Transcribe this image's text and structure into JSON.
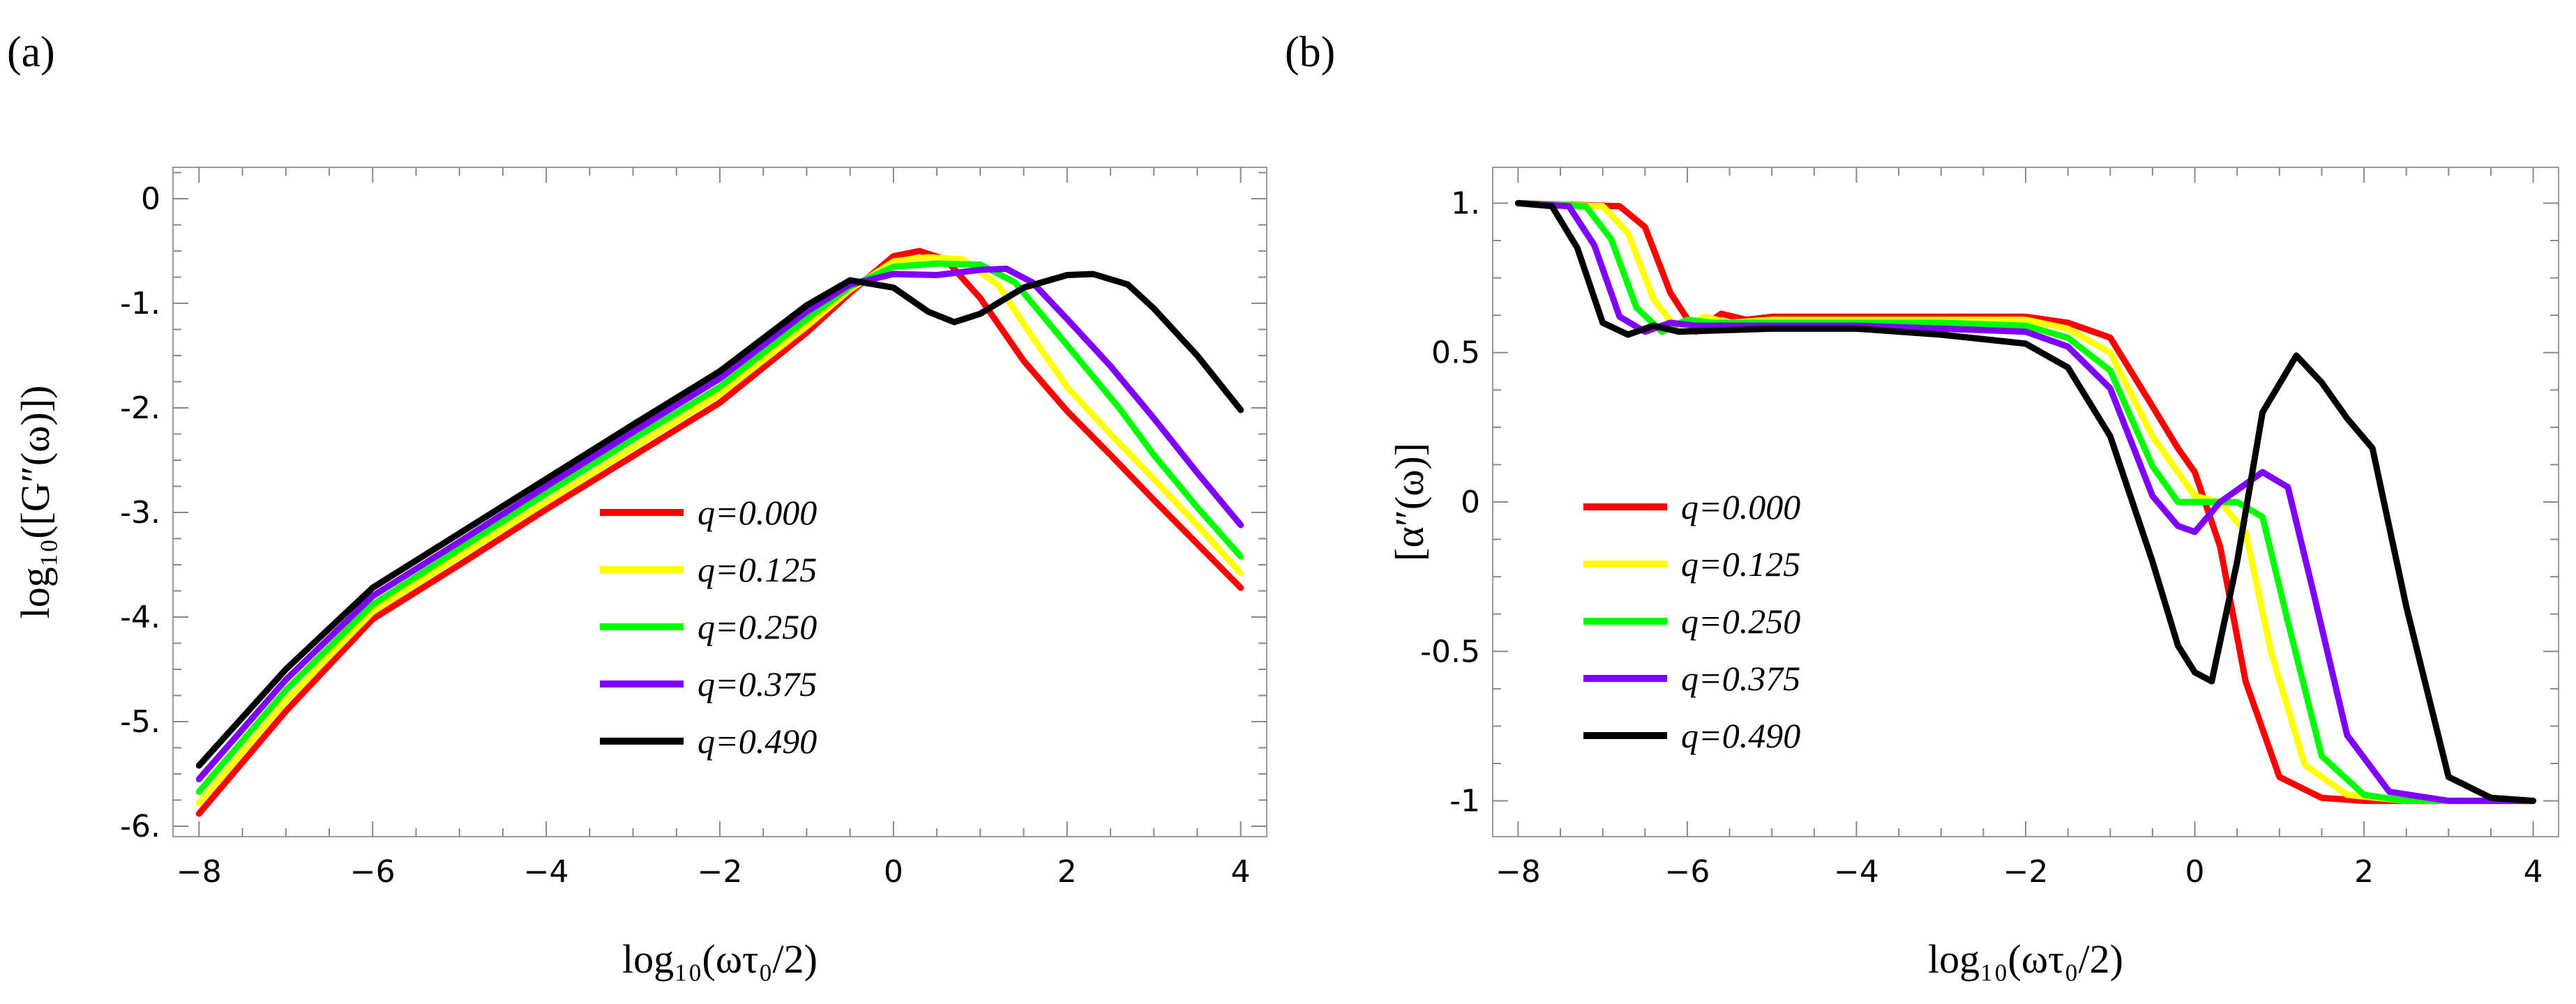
{
  "chart_data": [
    {
      "panel_label": "(a)",
      "type": "line",
      "xlabel": "log₁₀(ωτ₀/2)",
      "ylabel": "log₁₀([G″(ω)])",
      "xlim": [
        -8.3,
        4.3
      ],
      "ylim": [
        -6.1,
        0.3
      ],
      "xticks": [
        {
          "v": -8,
          "label": "−8"
        },
        {
          "v": -6,
          "label": "−6"
        },
        {
          "v": -4,
          "label": "−4"
        },
        {
          "v": -2,
          "label": "−2"
        },
        {
          "v": 0,
          "label": "0"
        },
        {
          "v": 2,
          "label": "2"
        },
        {
          "v": 4,
          "label": "4"
        }
      ],
      "yticks": [
        {
          "v": 0,
          "label": "0"
        },
        {
          "v": -1,
          "label": "-1."
        },
        {
          "v": -2,
          "label": "-2."
        },
        {
          "v": -3,
          "label": "-3."
        },
        {
          "v": -4,
          "label": "-4."
        },
        {
          "v": -5,
          "label": "-5."
        },
        {
          "v": -6,
          "label": "-6."
        }
      ],
      "legend_position": "center",
      "series": [
        {
          "name": "q=0.000",
          "color": "#ff0000",
          "x": [
            -8,
            -7,
            -6,
            -5,
            -4,
            -3,
            -2,
            -1,
            -0.5,
            0,
            0.3,
            0.6,
            1,
            1.5,
            2,
            2.5,
            3,
            3.5,
            4
          ],
          "y": [
            -5.88,
            -4.9,
            -4.02,
            -3.5,
            -2.97,
            -2.46,
            -1.95,
            -1.28,
            -0.9,
            -0.55,
            -0.5,
            -0.58,
            -0.95,
            -1.55,
            -2.03,
            -2.45,
            -2.88,
            -3.3,
            -3.72
          ]
        },
        {
          "name": "q=0.125",
          "color": "#ffff00",
          "x": [
            -8,
            -7,
            -6,
            -5,
            -4,
            -3,
            -2,
            -1,
            -0.5,
            0,
            0.4,
            0.8,
            1.2,
            1.6,
            2,
            2.5,
            3,
            3.5,
            4
          ],
          "y": [
            -5.78,
            -4.8,
            -3.95,
            -3.42,
            -2.9,
            -2.38,
            -1.87,
            -1.22,
            -0.87,
            -0.6,
            -0.56,
            -0.58,
            -0.82,
            -1.32,
            -1.8,
            -2.25,
            -2.68,
            -3.12,
            -3.58
          ]
        },
        {
          "name": "q=0.250",
          "color": "#00ff00",
          "x": [
            -8,
            -7,
            -6,
            -5,
            -4,
            -3,
            -2,
            -1,
            -0.5,
            0,
            0.5,
            1,
            1.4,
            1.8,
            2.2,
            2.6,
            3,
            3.5,
            4
          ],
          "y": [
            -5.67,
            -4.7,
            -3.88,
            -3.35,
            -2.82,
            -2.3,
            -1.8,
            -1.15,
            -0.84,
            -0.65,
            -0.62,
            -0.63,
            -0.8,
            -1.2,
            -1.6,
            -2.0,
            -2.45,
            -2.95,
            -3.42
          ]
        },
        {
          "name": "q=0.375",
          "color": "#8000ff",
          "x": [
            -8,
            -7,
            -6,
            -5,
            -4,
            -3,
            -2,
            -1,
            -0.5,
            0,
            0.5,
            1,
            1.3,
            1.6,
            2,
            2.5,
            3,
            3.5,
            4
          ],
          "y": [
            -5.55,
            -4.6,
            -3.8,
            -3.28,
            -2.75,
            -2.23,
            -1.72,
            -1.08,
            -0.82,
            -0.72,
            -0.73,
            -0.68,
            -0.67,
            -0.8,
            -1.15,
            -1.6,
            -2.1,
            -2.62,
            -3.12
          ]
        },
        {
          "name": "q=0.490",
          "color": "#000000",
          "x": [
            -8,
            -7,
            -6,
            -5,
            -4,
            -3,
            -2,
            -1,
            -0.5,
            0,
            0.4,
            0.7,
            1,
            1.5,
            2,
            2.3,
            2.7,
            3,
            3.5,
            4
          ],
          "y": [
            -5.42,
            -4.5,
            -3.72,
            -3.2,
            -2.68,
            -2.16,
            -1.65,
            -1.02,
            -0.78,
            -0.85,
            -1.08,
            -1.18,
            -1.1,
            -0.85,
            -0.73,
            -0.72,
            -0.82,
            -1.05,
            -1.5,
            -2.02
          ]
        }
      ]
    },
    {
      "panel_label": "(b)",
      "type": "line",
      "xlabel": "log₁₀(ωτ₀/2)",
      "ylabel": "[α″(ω)]",
      "xlim": [
        -8.3,
        4.3
      ],
      "ylim": [
        -1.12,
        1.12
      ],
      "xticks": [
        {
          "v": -8,
          "label": "−8"
        },
        {
          "v": -6,
          "label": "−6"
        },
        {
          "v": -4,
          "label": "−4"
        },
        {
          "v": -2,
          "label": "−2"
        },
        {
          "v": 0,
          "label": "0"
        },
        {
          "v": 2,
          "label": "2"
        },
        {
          "v": 4,
          "label": "4"
        }
      ],
      "yticks": [
        {
          "v": 1,
          "label": "1."
        },
        {
          "v": 0.5,
          "label": "0.5"
        },
        {
          "v": 0,
          "label": "0"
        },
        {
          "v": -0.5,
          "label": "-0.5"
        },
        {
          "v": -1,
          "label": "-1"
        }
      ],
      "legend_position": "lower-left",
      "series": [
        {
          "name": "q=0.000",
          "color": "#ff0000",
          "x": [
            -8,
            -6.8,
            -6.5,
            -6.2,
            -5.9,
            -5.6,
            -5.3,
            -5,
            -4,
            -3,
            -2,
            -1.5,
            -1,
            -0.5,
            -0.2,
            0,
            0.3,
            0.6,
            1,
            1.5,
            2,
            3,
            4
          ],
          "y": [
            1,
            0.99,
            0.92,
            0.7,
            0.57,
            0.63,
            0.61,
            0.62,
            0.62,
            0.62,
            0.62,
            0.6,
            0.55,
            0.32,
            0.18,
            0.1,
            -0.15,
            -0.6,
            -0.92,
            -0.99,
            -1,
            -1,
            -1
          ]
        },
        {
          "name": "q=0.125",
          "color": "#ffff00",
          "x": [
            -8,
            -7,
            -6.7,
            -6.4,
            -6.1,
            -5.8,
            -5.5,
            -5,
            -4,
            -3,
            -2,
            -1.5,
            -1,
            -0.5,
            0,
            0.3,
            0.6,
            0.9,
            1.3,
            1.8,
            2.5,
            3,
            4
          ],
          "y": [
            1,
            0.99,
            0.9,
            0.68,
            0.57,
            0.62,
            0.6,
            0.61,
            0.61,
            0.61,
            0.61,
            0.58,
            0.5,
            0.22,
            0.02,
            0,
            -0.1,
            -0.5,
            -0.88,
            -0.98,
            -1,
            -1,
            -1
          ]
        },
        {
          "name": "q=0.250",
          "color": "#00ff00",
          "x": [
            -8,
            -7.2,
            -6.9,
            -6.6,
            -6.3,
            -6,
            -5.7,
            -5,
            -4,
            -3,
            -2,
            -1.5,
            -1,
            -0.5,
            -0.2,
            0.1,
            0.5,
            0.8,
            1.1,
            1.5,
            2,
            2.5,
            4
          ],
          "y": [
            1,
            0.99,
            0.88,
            0.65,
            0.57,
            0.61,
            0.6,
            0.6,
            0.6,
            0.6,
            0.59,
            0.55,
            0.44,
            0.12,
            0,
            0,
            0,
            -0.05,
            -0.4,
            -0.85,
            -0.98,
            -1,
            -1
          ]
        },
        {
          "name": "q=0.375",
          "color": "#8000ff",
          "x": [
            -8,
            -7.4,
            -7.1,
            -6.8,
            -6.5,
            -6.2,
            -5.9,
            -5,
            -4,
            -3,
            -2,
            -1.5,
            -1,
            -0.5,
            -0.2,
            0,
            0.3,
            0.8,
            1.1,
            1.4,
            1.8,
            2.3,
            3,
            4
          ],
          "y": [
            1,
            0.99,
            0.86,
            0.62,
            0.57,
            0.6,
            0.59,
            0.59,
            0.59,
            0.58,
            0.57,
            0.52,
            0.38,
            0.02,
            -0.08,
            -0.1,
            0,
            0.1,
            0.05,
            -0.3,
            -0.78,
            -0.97,
            -1,
            -1
          ]
        },
        {
          "name": "q=0.490",
          "color": "#000000",
          "x": [
            -8,
            -7.6,
            -7.3,
            -7,
            -6.7,
            -6.4,
            -6.1,
            -5,
            -4,
            -3,
            -2,
            -1.5,
            -1,
            -0.5,
            -0.2,
            0,
            0.2,
            0.5,
            0.8,
            1.2,
            1.5,
            1.8,
            2.1,
            2.5,
            3,
            3.5,
            4
          ],
          "y": [
            1,
            0.99,
            0.85,
            0.6,
            0.56,
            0.59,
            0.57,
            0.58,
            0.58,
            0.56,
            0.53,
            0.45,
            0.22,
            -0.2,
            -0.48,
            -0.57,
            -0.6,
            -0.2,
            0.3,
            0.49,
            0.4,
            0.28,
            0.18,
            -0.35,
            -0.92,
            -0.99,
            -1
          ]
        }
      ]
    }
  ]
}
